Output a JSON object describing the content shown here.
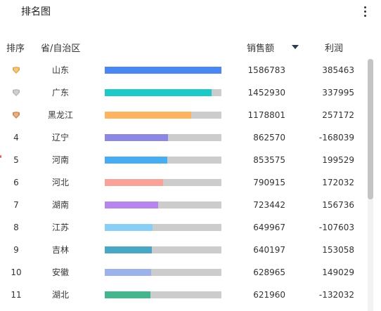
{
  "header": {
    "title": "排名图",
    "more_icon": "more-vertical-icon"
  },
  "columns": {
    "rank": "排序",
    "province": "省/自治区",
    "sales": "销售额",
    "profit": "利润",
    "sort_icon": "caret-down-icon"
  },
  "medal_colors": {
    "gold": "#e8a94a",
    "silver": "#b8b8b8",
    "bronze": "#d48a4f"
  },
  "track_color": "#cccccc",
  "max_sales": 1586783,
  "rows": [
    {
      "rank": "",
      "medal": "gold",
      "province": "山东",
      "sales": "1586783",
      "profit": "385463",
      "value": 1586783,
      "color": "#4b87f0"
    },
    {
      "rank": "",
      "medal": "silver",
      "province": "广东",
      "sales": "1452930",
      "profit": "337995",
      "value": 1452930,
      "color": "#1fc9c7"
    },
    {
      "rank": "",
      "medal": "bronze",
      "province": "黑龙江",
      "sales": "1178801",
      "profit": "257172",
      "value": 1178801,
      "color": "#fdb35f"
    },
    {
      "rank": "4",
      "medal": "",
      "province": "辽宁",
      "sales": "862570",
      "profit": "-168039",
      "value": 862570,
      "color": "#8b87e3"
    },
    {
      "rank": "5",
      "medal": "",
      "province": "河南",
      "sales": "853575",
      "profit": "199529",
      "value": 853575,
      "color": "#48acf1"
    },
    {
      "rank": "6",
      "medal": "",
      "province": "河北",
      "sales": "790915",
      "profit": "172032",
      "value": 790915,
      "color": "#f8a29a"
    },
    {
      "rank": "7",
      "medal": "",
      "province": "湖南",
      "sales": "723442",
      "profit": "156736",
      "value": 723442,
      "color": "#b786ec"
    },
    {
      "rank": "8",
      "medal": "",
      "province": "江苏",
      "sales": "649967",
      "profit": "-107603",
      "value": 649967,
      "color": "#88cff3"
    },
    {
      "rank": "9",
      "medal": "",
      "province": "吉林",
      "sales": "640197",
      "profit": "153058",
      "value": 640197,
      "color": "#4aa7c4"
    },
    {
      "rank": "10",
      "medal": "",
      "province": "安徽",
      "sales": "628965",
      "profit": "149029",
      "value": 628965,
      "color": "#9eb2ea"
    },
    {
      "rank": "11",
      "medal": "",
      "province": "湖北",
      "sales": "621960",
      "profit": "-132032",
      "value": 621960,
      "color": "#45b58e"
    }
  ]
}
